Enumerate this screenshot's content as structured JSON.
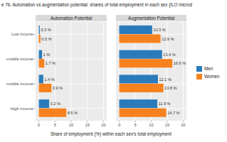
{
  "chart_data": [
    {
      "type": "bar",
      "orientation": "horizontal",
      "title": "e 7b. Automation vs augmentation potential: shares of total employment in each sex (ILO microd",
      "subtitle": "Automation Potential",
      "x_label": "Share of employment (%) within each sex's total employment",
      "categories": [
        "Low income",
        "-middle income",
        "-middle income",
        "High income"
      ],
      "series": [
        {
          "name": "Men",
          "color": "#2b7bba",
          "values": [
            0.3,
            1,
            1.4,
            3.2
          ],
          "value_labels": [
            "0.3 %",
            "1 %",
            "1.4 %",
            "3.2 %"
          ]
        },
        {
          "name": "Women",
          "color": "#f5821f",
          "values": [
            0.5,
            1.7,
            3.9,
            8.5
          ],
          "value_labels": [
            "0.5 %",
            "1.7 %",
            "3.9 %",
            "8.5 %"
          ]
        }
      ],
      "xlim": [
        -1,
        21
      ],
      "xticks": [
        0,
        5,
        10,
        15,
        20
      ],
      "grid": true,
      "legend": "right",
      "data_labels": true
    },
    {
      "type": "bar",
      "orientation": "horizontal",
      "subtitle": "Augmentation Potential",
      "series": [
        {
          "color": "#2b7bba",
          "values": [
            10.3,
            13.4,
            12.1,
            11.9
          ],
          "value_labels": [
            "10.3 %",
            "13.4 %",
            "12.1 %",
            "11.9 %"
          ]
        },
        {
          "color": "#f5821f",
          "values": [
            12.9,
            16.6,
            13.8,
            14.7
          ],
          "value_labels": [
            "12.9 %",
            "16.6 %",
            "13.8 %",
            "14.7 %"
          ]
        }
      ],
      "xlim": [
        -1,
        21
      ],
      "xticks": [
        0,
        5,
        10,
        15,
        20
      ],
      "grid": true,
      "data_labels": true
    }
  ]
}
